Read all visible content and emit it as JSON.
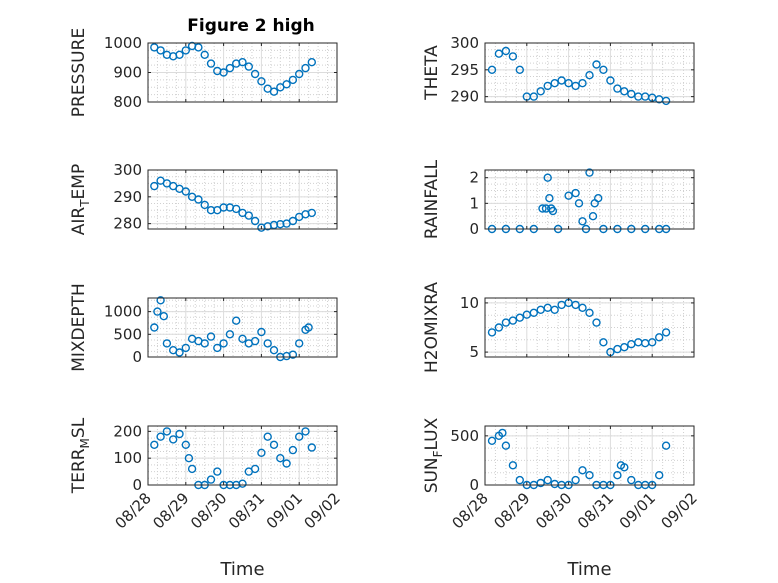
{
  "figure_title": "Figure 2 high",
  "marker_color": "#0072BD",
  "chart_data": [
    {
      "type": "scatter",
      "title": "Figure 2 high",
      "ylabel": "PRESSURE",
      "ylim": [
        800,
        1000
      ],
      "yticks": [
        800,
        900,
        1000
      ],
      "ytick_labels": [
        "800",
        "900",
        "1000"
      ],
      "xlabel": "",
      "grid": true,
      "x": [
        "08/28 04:00",
        "08/28 08:00",
        "08/28 12:00",
        "08/28 16:00",
        "08/28 20:00",
        "08/29 00:00",
        "08/29 04:00",
        "08/29 08:00",
        "08/29 12:00",
        "08/29 16:00",
        "08/29 20:00",
        "08/30 00:00",
        "08/30 04:00",
        "08/30 08:00",
        "08/30 12:00",
        "08/30 16:00",
        "08/30 20:00",
        "08/31 00:00",
        "08/31 04:00",
        "08/31 08:00",
        "08/31 12:00",
        "08/31 16:00",
        "08/31 20:00",
        "09/01 00:00",
        "09/01 04:00",
        "09/01 08:00"
      ],
      "y": [
        985,
        975,
        960,
        955,
        960,
        975,
        990,
        985,
        960,
        930,
        905,
        900,
        915,
        930,
        935,
        920,
        895,
        870,
        845,
        835,
        850,
        860,
        875,
        895,
        915,
        935
      ]
    },
    {
      "type": "scatter",
      "ylabel": "THETA",
      "ylim": [
        289,
        300
      ],
      "yticks": [
        290,
        295,
        300
      ],
      "ytick_labels": [
        "290",
        "295",
        "300"
      ],
      "xlabel": "",
      "grid": true,
      "x": [
        "08/28 04:00",
        "08/28 08:00",
        "08/28 12:00",
        "08/28 16:00",
        "08/28 20:00",
        "08/29 00:00",
        "08/29 04:00",
        "08/29 08:00",
        "08/29 12:00",
        "08/29 16:00",
        "08/29 20:00",
        "08/30 00:00",
        "08/30 04:00",
        "08/30 08:00",
        "08/30 12:00",
        "08/30 16:00",
        "08/30 20:00",
        "08/31 00:00",
        "08/31 04:00",
        "08/31 08:00",
        "08/31 12:00",
        "08/31 16:00",
        "08/31 20:00",
        "09/01 00:00",
        "09/01 04:00",
        "09/01 08:00"
      ],
      "y": [
        295,
        298,
        298.5,
        297.5,
        295,
        290,
        290,
        291,
        292,
        292.5,
        293,
        292.5,
        292,
        292.5,
        294,
        296,
        295,
        293,
        291.5,
        291,
        290.5,
        290,
        290,
        289.8,
        289.5,
        289.2
      ]
    },
    {
      "type": "scatter",
      "ylabel": "AIR_TEMP",
      "ylim": [
        278,
        300
      ],
      "yticks": [
        280,
        290,
        300
      ],
      "ytick_labels": [
        "280",
        "290",
        "300"
      ],
      "xlabel": "",
      "grid": true,
      "x": [
        "08/28 04:00",
        "08/28 08:00",
        "08/28 12:00",
        "08/28 16:00",
        "08/28 20:00",
        "08/29 00:00",
        "08/29 04:00",
        "08/29 08:00",
        "08/29 12:00",
        "08/29 16:00",
        "08/29 20:00",
        "08/30 00:00",
        "08/30 04:00",
        "08/30 08:00",
        "08/30 12:00",
        "08/30 16:00",
        "08/30 20:00",
        "08/31 00:00",
        "08/31 04:00",
        "08/31 08:00",
        "08/31 12:00",
        "08/31 16:00",
        "08/31 20:00",
        "09/01 00:00",
        "09/01 04:00",
        "09/01 08:00"
      ],
      "y": [
        294,
        296,
        295,
        294,
        293,
        292,
        290,
        289,
        287,
        285,
        285,
        286,
        286,
        285.5,
        284,
        283,
        281,
        278.5,
        279,
        279.5,
        279.8,
        280,
        281,
        282.5,
        283.5,
        284
      ]
    },
    {
      "type": "scatter",
      "ylabel": "RAINFALL",
      "ylim": [
        0,
        2.3
      ],
      "yticks": [
        0,
        1,
        2
      ],
      "ytick_labels": [
        "0",
        "1",
        "2"
      ],
      "xlabel": "",
      "grid": true,
      "x": [
        "08/28 04:00",
        "08/28 12:00",
        "08/28 20:00",
        "08/29 04:00",
        "08/29 09:00",
        "08/29 11:00",
        "08/29 12:00",
        "08/29 13:00",
        "08/29 14:00",
        "08/29 15:00",
        "08/29 18:00",
        "08/30 00:00",
        "08/30 04:00",
        "08/30 06:00",
        "08/30 08:00",
        "08/30 10:00",
        "08/30 12:00",
        "08/30 14:00",
        "08/30 15:00",
        "08/30 17:00",
        "08/30 20:00",
        "08/31 04:00",
        "08/31 12:00",
        "08/31 20:00",
        "09/01 04:00",
        "09/01 08:00"
      ],
      "y": [
        0,
        0,
        0,
        0,
        0.8,
        0.8,
        2.0,
        1.2,
        0.8,
        0.7,
        0,
        1.3,
        1.4,
        1.0,
        0.3,
        0,
        2.2,
        0.5,
        1.0,
        1.2,
        0,
        0,
        0,
        0,
        0,
        0
      ]
    },
    {
      "type": "scatter",
      "ylabel": "MIXDEPTH",
      "ylim": [
        0,
        1300
      ],
      "yticks": [
        0,
        500,
        1000
      ],
      "ytick_labels": [
        "0",
        "500",
        "1000"
      ],
      "xlabel": "",
      "grid": true,
      "x": [
        "08/28 04:00",
        "08/28 06:00",
        "08/28 08:00",
        "08/28 10:00",
        "08/28 12:00",
        "08/28 16:00",
        "08/28 20:00",
        "08/29 00:00",
        "08/29 04:00",
        "08/29 08:00",
        "08/29 12:00",
        "08/29 16:00",
        "08/29 20:00",
        "08/30 00:00",
        "08/30 04:00",
        "08/30 08:00",
        "08/30 12:00",
        "08/30 16:00",
        "08/30 20:00",
        "08/31 00:00",
        "08/31 04:00",
        "08/31 08:00",
        "08/31 12:00",
        "08/31 16:00",
        "08/31 20:00",
        "09/01 00:00",
        "09/01 04:00",
        "09/01 06:00"
      ],
      "y": [
        650,
        1000,
        1250,
        900,
        300,
        150,
        100,
        200,
        400,
        350,
        300,
        450,
        200,
        300,
        500,
        800,
        400,
        300,
        350,
        550,
        300,
        150,
        0,
        20,
        50,
        300,
        600,
        650
      ]
    },
    {
      "type": "scatter",
      "ylabel": "H2OMIXRA",
      "ylim": [
        4.5,
        10.5
      ],
      "yticks": [
        5,
        10
      ],
      "ytick_labels": [
        "5",
        "10"
      ],
      "xlabel": "",
      "grid": true,
      "x": [
        "08/28 04:00",
        "08/28 08:00",
        "08/28 12:00",
        "08/28 16:00",
        "08/28 20:00",
        "08/29 00:00",
        "08/29 04:00",
        "08/29 08:00",
        "08/29 12:00",
        "08/29 16:00",
        "08/29 20:00",
        "08/30 00:00",
        "08/30 04:00",
        "08/30 08:00",
        "08/30 12:00",
        "08/30 16:00",
        "08/30 20:00",
        "08/31 00:00",
        "08/31 04:00",
        "08/31 08:00",
        "08/31 12:00",
        "08/31 16:00",
        "08/31 20:00",
        "09/01 00:00",
        "09/01 04:00",
        "09/01 08:00"
      ],
      "y": [
        7,
        7.5,
        8,
        8.2,
        8.5,
        8.8,
        9,
        9.3,
        9.5,
        9.3,
        9.8,
        10,
        9.8,
        9.5,
        9,
        8,
        6,
        5,
        5.3,
        5.5,
        5.8,
        6,
        5.9,
        6,
        6.5,
        7
      ]
    },
    {
      "type": "scatter",
      "ylabel": "TERR_MSL",
      "ylim": [
        0,
        220
      ],
      "yticks": [
        0,
        100,
        200
      ],
      "ytick_labels": [
        "0",
        "100",
        "200"
      ],
      "xlabel": "Time",
      "grid": true,
      "xticks": [
        "08/28",
        "08/29",
        "08/30",
        "08/31",
        "09/01",
        "09/02"
      ],
      "x": [
        "08/28 04:00",
        "08/28 08:00",
        "08/28 12:00",
        "08/28 16:00",
        "08/28 20:00",
        "08/29 00:00",
        "08/29 02:00",
        "08/29 04:00",
        "08/29 08:00",
        "08/29 12:00",
        "08/29 16:00",
        "08/29 20:00",
        "08/30 00:00",
        "08/30 04:00",
        "08/30 08:00",
        "08/30 12:00",
        "08/30 16:00",
        "08/30 20:00",
        "08/31 00:00",
        "08/31 04:00",
        "08/31 08:00",
        "08/31 12:00",
        "08/31 16:00",
        "08/31 20:00",
        "09/01 00:00",
        "09/01 04:00",
        "09/01 08:00"
      ],
      "y": [
        150,
        180,
        200,
        170,
        190,
        150,
        100,
        60,
        0,
        0,
        20,
        50,
        0,
        0,
        0,
        5,
        50,
        60,
        120,
        180,
        150,
        100,
        80,
        130,
        180,
        200,
        140
      ]
    },
    {
      "type": "scatter",
      "ylabel": "SUN_FLUX",
      "ylim": [
        0,
        600
      ],
      "yticks": [
        0,
        500
      ],
      "ytick_labels": [
        "0",
        "500"
      ],
      "xlabel": "Time",
      "grid": true,
      "xticks": [
        "08/28",
        "08/29",
        "08/30",
        "08/31",
        "09/01",
        "09/02"
      ],
      "x": [
        "08/28 04:00",
        "08/28 08:00",
        "08/28 10:00",
        "08/28 12:00",
        "08/28 16:00",
        "08/28 20:00",
        "08/29 00:00",
        "08/29 04:00",
        "08/29 08:00",
        "08/29 12:00",
        "08/29 16:00",
        "08/29 20:00",
        "08/30 00:00",
        "08/30 04:00",
        "08/30 08:00",
        "08/30 12:00",
        "08/30 16:00",
        "08/30 20:00",
        "08/31 00:00",
        "08/31 04:00",
        "08/31 06:00",
        "08/31 08:00",
        "08/31 12:00",
        "08/31 16:00",
        "08/31 20:00",
        "09/01 00:00",
        "09/01 04:00",
        "09/01 08:00"
      ],
      "y": [
        450,
        500,
        530,
        400,
        200,
        50,
        0,
        0,
        20,
        50,
        10,
        0,
        0,
        50,
        150,
        100,
        0,
        0,
        0,
        100,
        200,
        180,
        50,
        0,
        0,
        0,
        100,
        400
      ]
    }
  ]
}
